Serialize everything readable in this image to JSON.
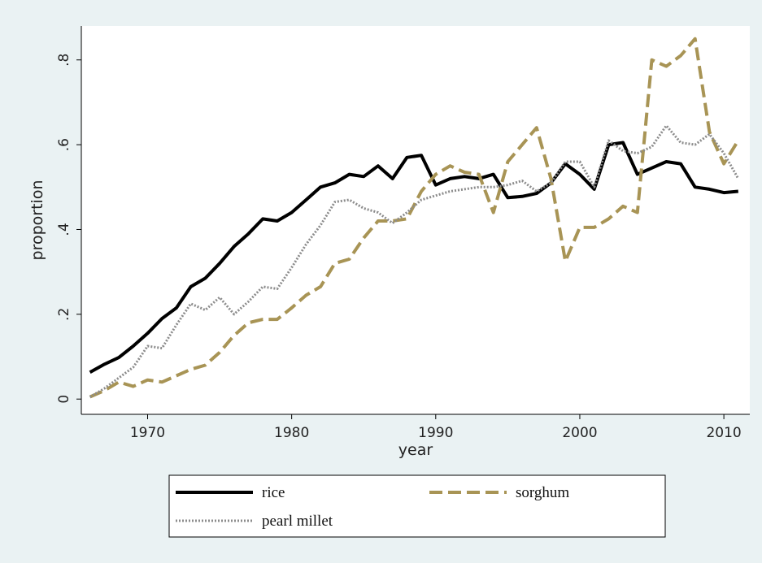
{
  "chart_data": {
    "type": "line",
    "x_label": "year",
    "y_label": "proportion",
    "x": [
      1966,
      1967,
      1968,
      1969,
      1970,
      1971,
      1972,
      1973,
      1974,
      1975,
      1976,
      1977,
      1978,
      1979,
      1980,
      1981,
      1982,
      1983,
      1984,
      1985,
      1986,
      1987,
      1988,
      1989,
      1990,
      1991,
      1992,
      1993,
      1994,
      1995,
      1996,
      1997,
      1998,
      1999,
      2000,
      2001,
      2002,
      2003,
      2004,
      2005,
      2006,
      2007,
      2008,
      2009,
      2010,
      2011
    ],
    "series": [
      {
        "name": "rice",
        "color": "#000000",
        "style": "solid",
        "values": [
          0.063,
          0.082,
          0.098,
          0.125,
          0.155,
          0.19,
          0.215,
          0.265,
          0.285,
          0.32,
          0.36,
          0.39,
          0.425,
          0.42,
          0.44,
          0.47,
          0.5,
          0.51,
          0.53,
          0.525,
          0.55,
          0.52,
          0.57,
          0.575,
          0.505,
          0.52,
          0.525,
          0.52,
          0.53,
          0.475,
          0.478,
          0.485,
          0.51,
          0.555,
          0.53,
          0.495,
          0.6,
          0.605,
          0.53,
          0.545,
          0.56,
          0.555,
          0.5,
          0.495,
          0.487,
          0.49
        ]
      },
      {
        "name": "sorghum",
        "color": "#a89455",
        "style": "dash",
        "values": [
          0.005,
          0.02,
          0.04,
          0.03,
          0.045,
          0.04,
          0.055,
          0.07,
          0.08,
          0.11,
          0.15,
          0.18,
          0.188,
          0.188,
          0.215,
          0.245,
          0.265,
          0.32,
          0.33,
          0.38,
          0.42,
          0.42,
          0.425,
          0.49,
          0.53,
          0.55,
          0.535,
          0.53,
          0.44,
          0.56,
          0.6,
          0.64,
          0.52,
          0.325,
          0.405,
          0.405,
          0.425,
          0.455,
          0.44,
          0.8,
          0.785,
          0.81,
          0.85,
          0.63,
          0.555,
          0.61
        ]
      },
      {
        "name": "pearl millet",
        "color": "#8c8c8c",
        "style": "dot",
        "values": [
          0.005,
          0.025,
          0.05,
          0.075,
          0.125,
          0.12,
          0.175,
          0.225,
          0.21,
          0.24,
          0.2,
          0.23,
          0.265,
          0.26,
          0.31,
          0.365,
          0.41,
          0.465,
          0.47,
          0.45,
          0.44,
          0.415,
          0.44,
          0.47,
          0.48,
          0.49,
          0.495,
          0.5,
          0.5,
          0.505,
          0.515,
          0.49,
          0.51,
          0.56,
          0.56,
          0.5,
          0.61,
          0.585,
          0.58,
          0.595,
          0.645,
          0.605,
          0.6,
          0.625,
          0.58,
          0.52
        ]
      }
    ],
    "xlim": [
      1965.4,
      2011.8
    ],
    "xticks": [
      1970,
      1980,
      1990,
      2000,
      2010
    ],
    "ylim": [
      -0.036,
      0.88
    ],
    "yticks": [
      {
        "value": 0,
        "label": "0"
      },
      {
        "value": 0.2,
        "label": ".2"
      },
      {
        "value": 0.4,
        "label": ".4"
      },
      {
        "value": 0.6,
        "label": ".6"
      },
      {
        "value": 0.8,
        "label": ".8"
      }
    ]
  }
}
